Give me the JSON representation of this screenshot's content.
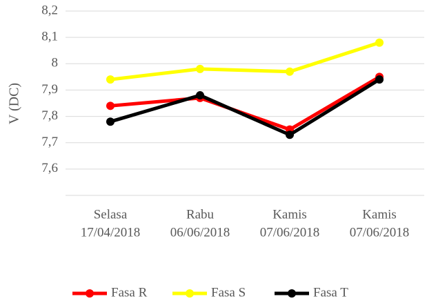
{
  "chart_data": {
    "type": "line",
    "y_label": "V (DC)",
    "categories": [
      [
        "Selasa",
        "17/04/2018"
      ],
      [
        "Rabu",
        "06/06/2018"
      ],
      [
        "Kamis",
        "07/06/2018"
      ],
      [
        "Kamis",
        "07/06/2018"
      ]
    ],
    "series": [
      {
        "name": "Fasa R",
        "color": "#ff0000",
        "values": [
          7.84,
          7.87,
          7.75,
          7.95
        ]
      },
      {
        "name": "Fasa S",
        "color": "#ffff00",
        "values": [
          7.94,
          7.98,
          7.97,
          8.08
        ]
      },
      {
        "name": "Fasa T",
        "color": "#000000",
        "values": [
          7.78,
          7.88,
          7.73,
          7.94
        ]
      }
    ],
    "ylim": [
      7.5,
      8.2
    ],
    "yticks": [
      {
        "value": 7.6,
        "label": "7,6"
      },
      {
        "value": 7.7,
        "label": "7,7"
      },
      {
        "value": 7.8,
        "label": "7,8"
      },
      {
        "value": 7.9,
        "label": "7,9"
      },
      8,
      {
        "value": 8.1,
        "label": "8,1"
      },
      {
        "value": 8.2,
        "label": "8,2"
      }
    ],
    "grid": true,
    "legend": "bottom"
  }
}
